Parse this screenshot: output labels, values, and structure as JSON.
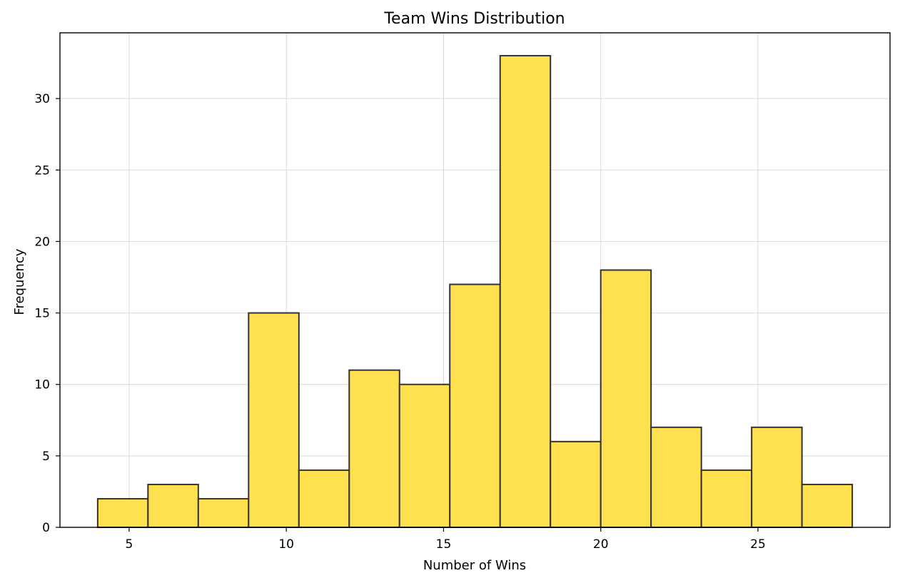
{
  "chart_data": {
    "type": "bar",
    "title": "Team Wins Distribution",
    "xlabel": "Number of Wins",
    "ylabel": "Frequency",
    "xlim": [
      2.8,
      29.2
    ],
    "ylim": [
      0,
      34.6
    ],
    "xticks": [
      5,
      10,
      15,
      20,
      25
    ],
    "yticks": [
      0,
      5,
      10,
      15,
      20,
      25,
      30
    ],
    "bins": [
      {
        "start": 4.0,
        "end": 5.6,
        "value": 2
      },
      {
        "start": 5.6,
        "end": 7.2,
        "value": 3
      },
      {
        "start": 7.2,
        "end": 8.8,
        "value": 2
      },
      {
        "start": 8.8,
        "end": 10.4,
        "value": 15
      },
      {
        "start": 10.4,
        "end": 12.0,
        "value": 4
      },
      {
        "start": 12.0,
        "end": 13.6,
        "value": 11
      },
      {
        "start": 13.6,
        "end": 15.2,
        "value": 10
      },
      {
        "start": 15.2,
        "end": 16.8,
        "value": 17
      },
      {
        "start": 16.8,
        "end": 18.4,
        "value": 33
      },
      {
        "start": 18.4,
        "end": 20.0,
        "value": 6
      },
      {
        "start": 20.0,
        "end": 21.6,
        "value": 18
      },
      {
        "start": 21.6,
        "end": 23.2,
        "value": 7
      },
      {
        "start": 23.2,
        "end": 24.8,
        "value": 4
      },
      {
        "start": 24.8,
        "end": 26.4,
        "value": 7
      },
      {
        "start": 26.4,
        "end": 28.0,
        "value": 3
      }
    ],
    "grid": true,
    "colors": {
      "bar_fill": "#ffe14f",
      "bar_stroke": "#333333",
      "grid": "#d9d9d9"
    }
  }
}
